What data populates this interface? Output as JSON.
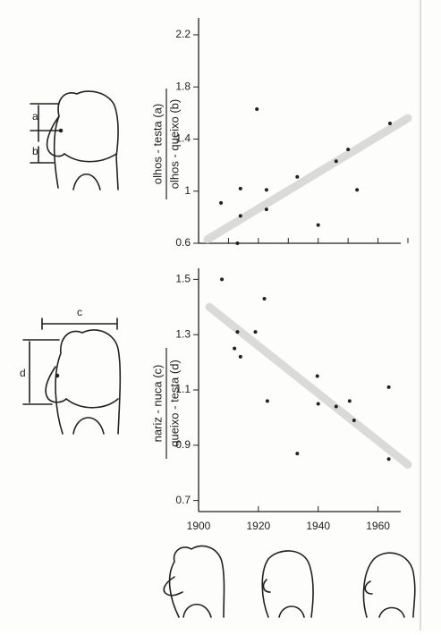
{
  "chart_data": [
    {
      "type": "scatter",
      "ylabel_numerator": "olhos - testa (a)",
      "ylabel_denominator": "olhos - queixo (b)",
      "x": [
        1907.5,
        1913,
        1914,
        1914,
        1919.5,
        1922.7,
        1922.7,
        1933,
        1940,
        1946,
        1950,
        1953,
        1964
      ],
      "values": [
        0.91,
        0.6,
        1.02,
        0.81,
        1.63,
        1.01,
        0.86,
        1.11,
        0.74,
        1.23,
        1.32,
        1.01,
        1.52
      ],
      "trendline": {
        "x": [
          1903,
          1970
        ],
        "y": [
          0.63,
          1.56
        ]
      },
      "color": "#222222",
      "trend_color": "#d4d4d4",
      "xlim": [
        1900,
        1970
      ],
      "xticks": [
        1900,
        1910,
        1920,
        1930,
        1940,
        1950,
        1960,
        1970
      ],
      "xtick_labels_shown": false,
      "ylim": [
        0.6,
        2.33
      ],
      "yticks": [
        0.6,
        1.0,
        1.4,
        1.8,
        2.2
      ]
    },
    {
      "type": "scatter",
      "ylabel_numerator": "nariz - nuca (c)",
      "ylabel_denominator": "queixo - testa (d)",
      "x": [
        1907.8,
        1912,
        1913,
        1914,
        1919,
        1922,
        1923,
        1933,
        1939.7,
        1940,
        1946,
        1950.5,
        1952,
        1963.6,
        1963.6
      ],
      "values": [
        1.5,
        1.25,
        1.31,
        1.22,
        1.31,
        1.43,
        1.06,
        0.87,
        1.15,
        1.05,
        1.04,
        1.06,
        0.99,
        1.11,
        0.85
      ],
      "trendline": {
        "x": [
          1903.6,
          1970
        ],
        "y": [
          1.4,
          0.83
        ]
      },
      "color": "#222222",
      "trend_color": "#d4d4d4",
      "xlim": [
        1900,
        1970
      ],
      "xticks": [
        1900,
        1920,
        1940,
        1960
      ],
      "xtick_labels_shown": true,
      "ylim": [
        0.66,
        1.54
      ],
      "yticks": [
        0.7,
        0.9,
        1.1,
        1.3,
        1.5
      ]
    }
  ],
  "illustration_labels": [
    "a",
    "b",
    "c",
    "d"
  ]
}
